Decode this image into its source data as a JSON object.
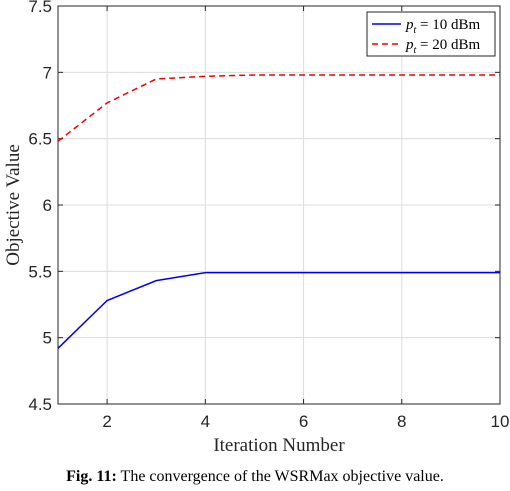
{
  "chart_data": {
    "type": "line",
    "xlabel": "Iteration Number",
    "ylabel": "Objective Value",
    "xlim": [
      1,
      10
    ],
    "ylim": [
      4.5,
      7.5
    ],
    "xticks": [
      2,
      4,
      6,
      8,
      10
    ],
    "yticks": [
      4.5,
      5,
      5.5,
      6,
      6.5,
      7,
      7.5
    ],
    "xtick_labels": [
      "2",
      "4",
      "6",
      "8",
      "10"
    ],
    "ytick_labels": [
      "4.5",
      "5",
      "5.5",
      "6",
      "6.5",
      "7",
      "7.5"
    ],
    "grid": true,
    "legend_position": "top-right",
    "x": [
      1,
      2,
      3,
      4,
      5,
      6,
      7,
      8,
      9,
      10
    ],
    "series": [
      {
        "name": "p_t = 10 dBm",
        "legend_prefix": "p",
        "legend_sub": "t",
        "legend_rest": " = 10 dBm",
        "color": "#0000ee",
        "style": "solid",
        "values": [
          4.92,
          5.28,
          5.43,
          5.49,
          5.49,
          5.49,
          5.49,
          5.49,
          5.49,
          5.49
        ]
      },
      {
        "name": "p_t = 20 dBm",
        "legend_prefix": "p",
        "legend_sub": "t",
        "legend_rest": " = 20 dBm",
        "color": "#ee0000",
        "style": "dashed",
        "values": [
          6.48,
          6.77,
          6.95,
          6.97,
          6.98,
          6.98,
          6.98,
          6.98,
          6.98,
          6.98
        ]
      }
    ]
  },
  "caption": {
    "label": "Fig. 11:",
    "text": " The convergence of the WSRMax objective value."
  }
}
